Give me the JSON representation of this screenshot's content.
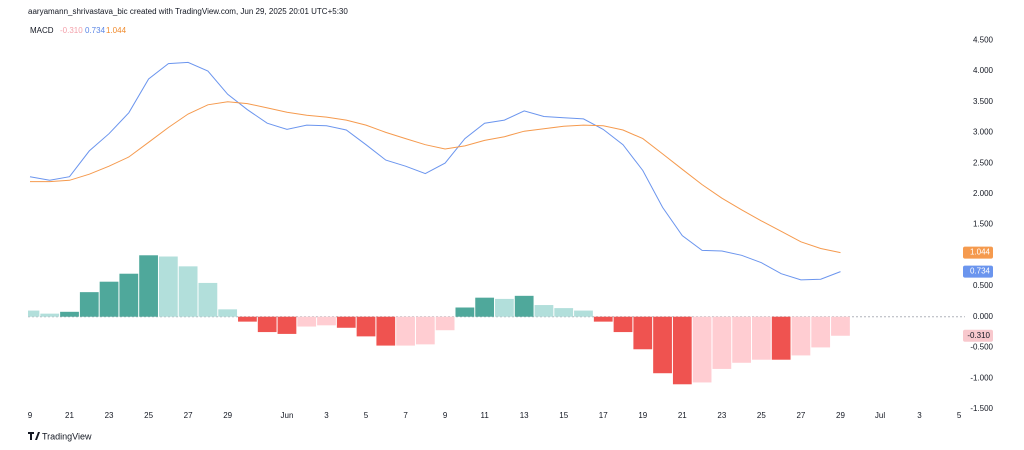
{
  "header": "aaryamann_shrivastava_bic created with TradingView.com, Jun 29, 2025 20:01 UTC+5:30",
  "footer": "TradingView",
  "chart_data": {
    "type": "macd",
    "legend": {
      "label": "MACD",
      "histogram": "-0.310",
      "macd": "0.734",
      "signal": "1.044"
    },
    "x": [
      0,
      1,
      2,
      3,
      4,
      5,
      6,
      7,
      8,
      9,
      10,
      11,
      12,
      13,
      14,
      15,
      16,
      17,
      18,
      19,
      20,
      21,
      22,
      23,
      24,
      25,
      26,
      27,
      28,
      29,
      30,
      31,
      32,
      33,
      34,
      35,
      36,
      37,
      38,
      39,
      40,
      41
    ],
    "xlim": [
      -0.1,
      47.3
    ],
    "xticks": [
      {
        "value": 0,
        "label": "9"
      },
      {
        "value": 2,
        "label": "21"
      },
      {
        "value": 4,
        "label": "23"
      },
      {
        "value": 6,
        "label": "25"
      },
      {
        "value": 8,
        "label": "27"
      },
      {
        "value": 10,
        "label": "29"
      },
      {
        "value": 13,
        "label": "Jun"
      },
      {
        "value": 15,
        "label": "3"
      },
      {
        "value": 17,
        "label": "5"
      },
      {
        "value": 19,
        "label": "7"
      },
      {
        "value": 21,
        "label": "9"
      },
      {
        "value": 23,
        "label": "11"
      },
      {
        "value": 25,
        "label": "13"
      },
      {
        "value": 27,
        "label": "15"
      },
      {
        "value": 29,
        "label": "17"
      },
      {
        "value": 31,
        "label": "19"
      },
      {
        "value": 33,
        "label": "21"
      },
      {
        "value": 35,
        "label": "23"
      },
      {
        "value": 37,
        "label": "25"
      },
      {
        "value": 39,
        "label": "27"
      },
      {
        "value": 41,
        "label": "29"
      },
      {
        "value": 43,
        "label": "Jul"
      },
      {
        "value": 45,
        "label": "3"
      },
      {
        "value": 47,
        "label": "5"
      }
    ],
    "ylim": [
      -1.6,
      4.7
    ],
    "yticks": [
      {
        "value": 4.5,
        "label": "4.500"
      },
      {
        "value": 4,
        "label": "4.000"
      },
      {
        "value": 3.5,
        "label": "3.500"
      },
      {
        "value": 3,
        "label": "3.000"
      },
      {
        "value": 2.5,
        "label": "2.500"
      },
      {
        "value": 2,
        "label": "2.000"
      },
      {
        "value": 1.5,
        "label": "1.500"
      },
      {
        "value": 1,
        "label": "1.000"
      },
      {
        "value": 0.5,
        "label": "0.500"
      },
      {
        "value": 0,
        "label": "0.000"
      },
      {
        "value": -0.5,
        "label": "-0.500"
      },
      {
        "value": -1,
        "label": "-1.000"
      },
      {
        "value": -1.5,
        "label": "-1.500"
      }
    ],
    "histogram": {
      "values": [
        0.1,
        0.05,
        0.08,
        0.4,
        0.57,
        0.7,
        1.0,
        0.98,
        0.82,
        0.55,
        0.12,
        -0.08,
        -0.25,
        -0.28,
        -0.16,
        -0.14,
        -0.18,
        -0.32,
        -0.47,
        -0.47,
        -0.45,
        -0.22,
        0.15,
        0.31,
        0.29,
        0.34,
        0.19,
        0.14,
        0.1,
        -0.08,
        -0.25,
        -0.53,
        -0.92,
        -1.1,
        -1.07,
        -0.85,
        -0.75,
        -0.7,
        -0.7,
        -0.63,
        -0.5,
        -0.31
      ],
      "colors": [
        "#b2dfdb",
        "#b2dfdb",
        "#4fa89b",
        "#4fa89b",
        "#4fa89b",
        "#4fa89b",
        "#4fa89b",
        "#b2dfdb",
        "#b2dfdb",
        "#b2dfdb",
        "#b2dfdb",
        "#ef5350",
        "#ef5350",
        "#ef5350",
        "#ffcdd2",
        "#ffcdd2",
        "#ef5350",
        "#ef5350",
        "#ef5350",
        "#ffcdd2",
        "#ffcdd2",
        "#ffcdd2",
        "#4fa89b",
        "#4fa89b",
        "#b2dfdb",
        "#4fa89b",
        "#b2dfdb",
        "#b2dfdb",
        "#b2dfdb",
        "#ef5350",
        "#ef5350",
        "#ef5350",
        "#ef5350",
        "#ef5350",
        "#ffcdd2",
        "#ffcdd2",
        "#ffcdd2",
        "#ffcdd2",
        "#ef5350",
        "#ffcdd2",
        "#ffcdd2",
        "#ffcdd2"
      ],
      "tag": "-0.310",
      "tag_color": "#f8c8cd"
    },
    "series": [
      {
        "name": "MACD",
        "color": "#6b95ee",
        "tag": "0.734",
        "values": [
          2.28,
          2.22,
          2.28,
          2.7,
          2.98,
          3.32,
          3.87,
          4.12,
          4.14,
          4.0,
          3.62,
          3.37,
          3.15,
          3.05,
          3.12,
          3.11,
          3.04,
          2.8,
          2.55,
          2.45,
          2.33,
          2.5,
          2.9,
          3.15,
          3.2,
          3.35,
          3.26,
          3.24,
          3.22,
          3.05,
          2.8,
          2.38,
          1.78,
          1.32,
          1.08,
          1.07,
          1.0,
          0.88,
          0.7,
          0.6,
          0.61,
          0.734
        ]
      },
      {
        "name": "Signal",
        "color": "#f59a4e",
        "tag": "1.044",
        "values": [
          2.2,
          2.2,
          2.22,
          2.32,
          2.45,
          2.6,
          2.84,
          3.08,
          3.3,
          3.45,
          3.5,
          3.47,
          3.4,
          3.33,
          3.28,
          3.25,
          3.2,
          3.12,
          3.0,
          2.9,
          2.8,
          2.73,
          2.78,
          2.87,
          2.93,
          3.02,
          3.06,
          3.1,
          3.12,
          3.11,
          3.04,
          2.9,
          2.65,
          2.4,
          2.15,
          1.93,
          1.74,
          1.56,
          1.39,
          1.22,
          1.11,
          1.044
        ]
      }
    ]
  }
}
